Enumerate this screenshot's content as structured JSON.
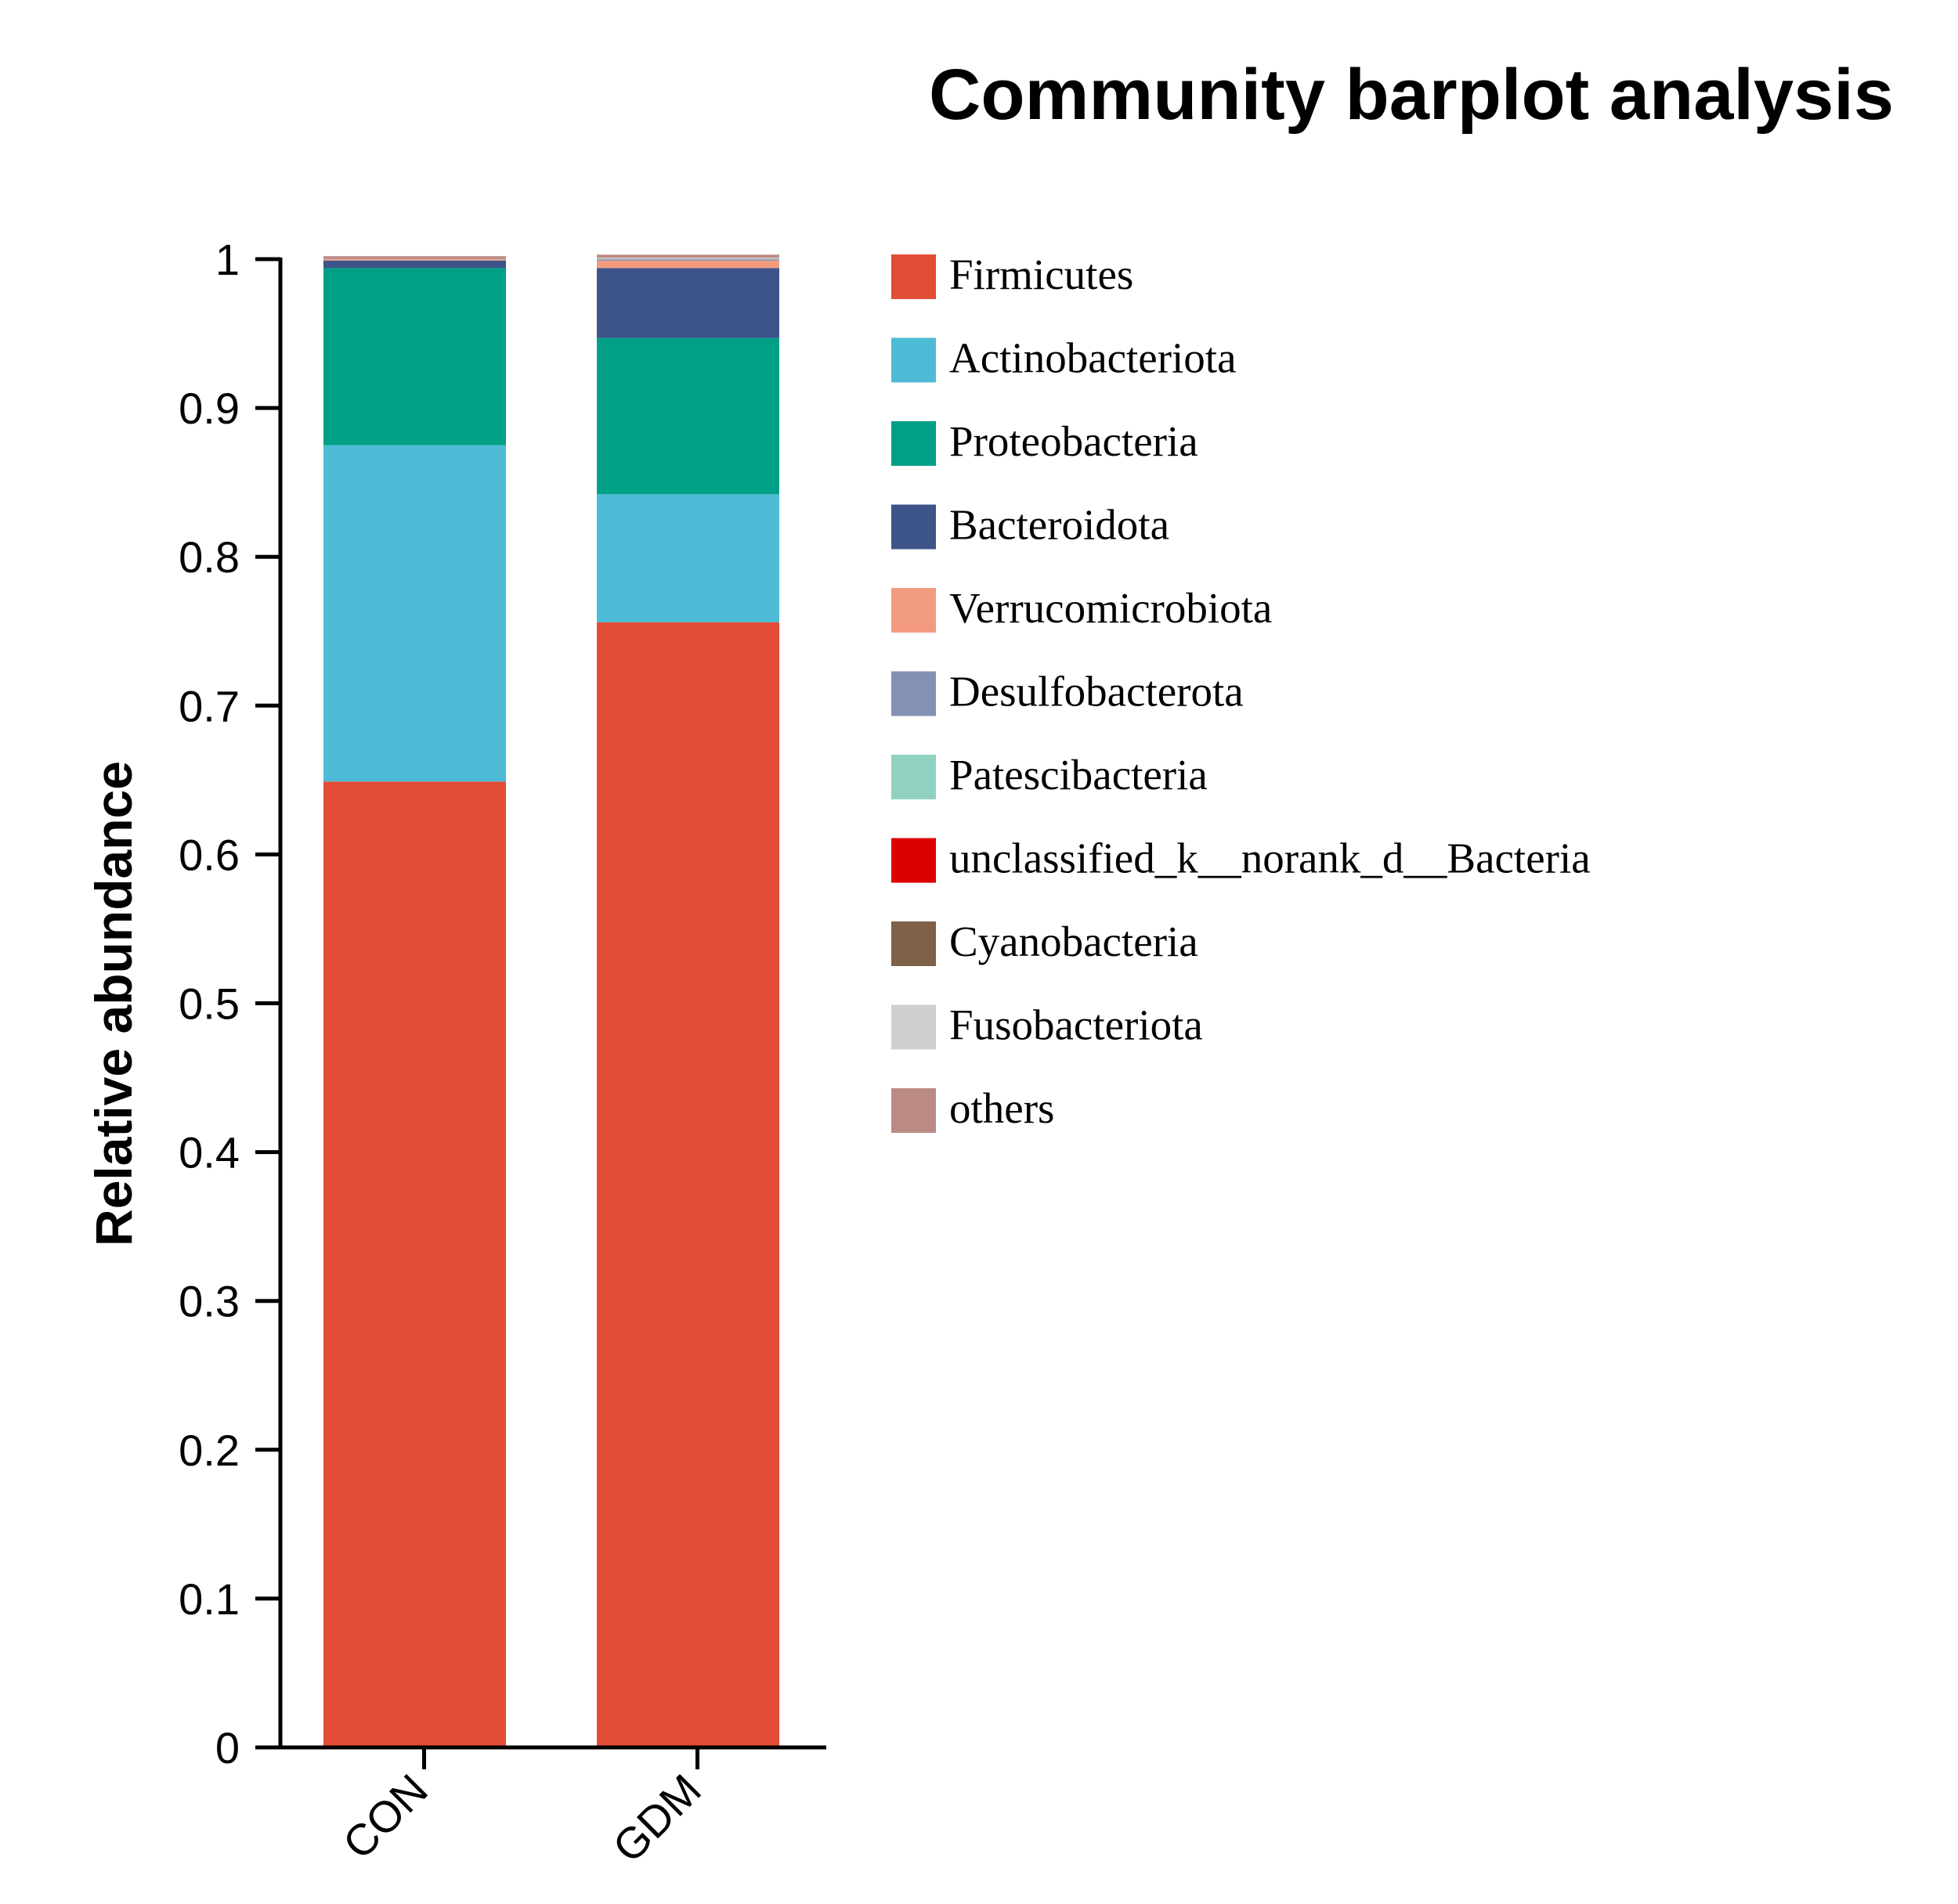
{
  "chart_data": {
    "type": "bar",
    "stacked": true,
    "title": "Community barplot analysis",
    "xlabel": "",
    "ylabel": "Relative abundance",
    "ylim": [
      0,
      1
    ],
    "yticks": [
      "0",
      "0.1",
      "0.2",
      "0.3",
      "0.4",
      "0.5",
      "0.6",
      "0.7",
      "0.8",
      "0.9",
      "1"
    ],
    "categories": [
      "CON",
      "GDM"
    ],
    "legend_position": "right",
    "series": [
      {
        "name": "Firmicutes",
        "color": "#E34C36",
        "values": [
          0.649,
          0.756
        ]
      },
      {
        "name": "Actinobacteriota",
        "color": "#4DBBD5",
        "values": [
          0.226,
          0.086
        ]
      },
      {
        "name": "Proteobacteria",
        "color": "#00A087",
        "values": [
          0.119,
          0.105
        ]
      },
      {
        "name": "Bacteroidota",
        "color": "#3C5488",
        "values": [
          0.005,
          0.047
        ]
      },
      {
        "name": "Verrucomicrobiota",
        "color": "#F39B7F",
        "values": [
          0.0008,
          0.005
        ]
      },
      {
        "name": "Desulfobacterota",
        "color": "#8491B4",
        "values": [
          0.0002,
          0.0008
        ]
      },
      {
        "name": "Patescibacteria",
        "color": "#91D1C2",
        "values": [
          0.0001,
          0.0002
        ]
      },
      {
        "name": "unclassified_k__norank_d__Bacteria",
        "color": "#DC0000",
        "values": [
          0.0001,
          0.0001
        ]
      },
      {
        "name": "Cyanobacteria",
        "color": "#7E6148",
        "values": [
          0.0001,
          0.0001
        ]
      },
      {
        "name": "Fusobacteriota",
        "color": "#CFCFCF",
        "values": [
          0.0001,
          0.0008
        ]
      },
      {
        "name": "others",
        "color": "#BC8A84",
        "values": [
          0.0016,
          0.002
        ]
      }
    ]
  }
}
